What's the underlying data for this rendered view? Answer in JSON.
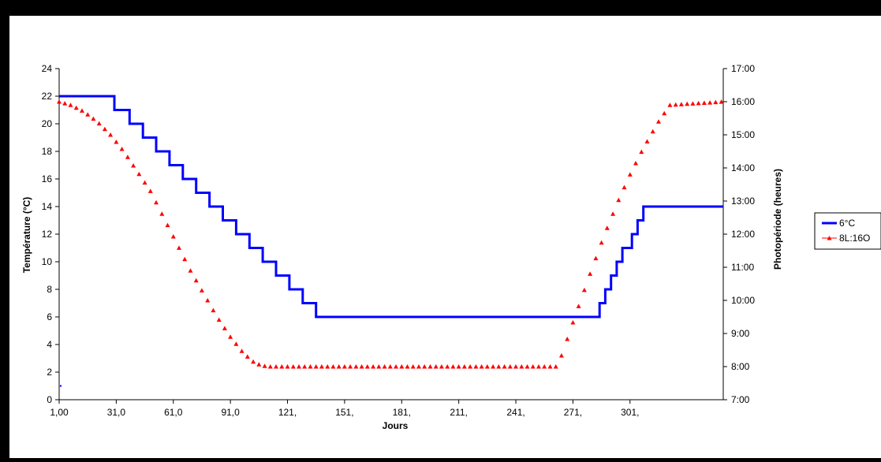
{
  "chart_data": {
    "type": "line",
    "xlabel": "Jours",
    "ylabel_left": "Température (°C)",
    "ylabel_right": "Photopériode (heures)",
    "x_range": [
      1,
      350
    ],
    "ylim_left": [
      0,
      24
    ],
    "ylim_right_hours": [
      7,
      17
    ],
    "x_tick_labels": [
      "1,00",
      "31,0",
      "61,0",
      "91,0",
      "121,",
      "151,",
      "181,",
      "211,",
      "241,",
      "271,",
      "301,"
    ],
    "x_tick_values": [
      1,
      31,
      61,
      91,
      121,
      151,
      181,
      211,
      241,
      271,
      301
    ],
    "y_left_ticks": [
      "0",
      "2",
      "4",
      "6",
      "8",
      "10",
      "12",
      "14",
      "16",
      "18",
      "20",
      "22",
      "24"
    ],
    "y_right_ticks": [
      "7:00",
      "8:00",
      "9:00",
      "10:00",
      "11:00",
      "12:00",
      "13:00",
      "14:00",
      "15:00",
      "16:00",
      "17:00"
    ],
    "grid": false,
    "legend_position": "right",
    "series": [
      {
        "name": "6°C",
        "axis": "left",
        "style": "step",
        "color": "#0000ff",
        "points": [
          [
            1,
            22
          ],
          [
            30,
            22
          ],
          [
            30,
            21
          ],
          [
            38,
            21
          ],
          [
            38,
            20
          ],
          [
            45,
            20
          ],
          [
            45,
            19
          ],
          [
            52,
            19
          ],
          [
            52,
            18
          ],
          [
            59,
            18
          ],
          [
            59,
            17
          ],
          [
            66,
            17
          ],
          [
            66,
            16
          ],
          [
            73,
            16
          ],
          [
            73,
            15
          ],
          [
            80,
            15
          ],
          [
            80,
            14
          ],
          [
            87,
            14
          ],
          [
            87,
            13
          ],
          [
            94,
            13
          ],
          [
            94,
            12
          ],
          [
            101,
            12
          ],
          [
            101,
            11
          ],
          [
            108,
            11
          ],
          [
            108,
            10
          ],
          [
            115,
            10
          ],
          [
            115,
            9
          ],
          [
            122,
            9
          ],
          [
            122,
            8
          ],
          [
            129,
            8
          ],
          [
            129,
            7
          ],
          [
            136,
            7
          ],
          [
            136,
            6
          ],
          [
            285,
            6
          ],
          [
            285,
            7
          ],
          [
            288,
            7
          ],
          [
            288,
            8
          ],
          [
            291,
            8
          ],
          [
            291,
            9
          ],
          [
            294,
            9
          ],
          [
            294,
            10
          ],
          [
            297,
            10
          ],
          [
            297,
            11
          ],
          [
            302,
            11
          ],
          [
            302,
            12
          ],
          [
            305,
            12
          ],
          [
            305,
            13
          ],
          [
            308,
            13
          ],
          [
            308,
            14
          ],
          [
            350,
            14
          ]
        ]
      },
      {
        "name": "8L:16O",
        "axis": "right",
        "style": "markers",
        "color": "#ff0000",
        "profile": [
          [
            1,
            16.0
          ],
          [
            7,
            15.9
          ],
          [
            14,
            15.7
          ],
          [
            21,
            15.4
          ],
          [
            28,
            15.0
          ],
          [
            35,
            14.5
          ],
          [
            42,
            13.9
          ],
          [
            49,
            13.3
          ],
          [
            56,
            12.5
          ],
          [
            63,
            11.7
          ],
          [
            70,
            10.9
          ],
          [
            77,
            10.2
          ],
          [
            84,
            9.5
          ],
          [
            91,
            8.9
          ],
          [
            98,
            8.4
          ],
          [
            104,
            8.1
          ],
          [
            110,
            8.0
          ],
          [
            263,
            8.0
          ],
          [
            272,
            9.5
          ],
          [
            280,
            10.8
          ],
          [
            287,
            11.9
          ],
          [
            294,
            12.9
          ],
          [
            301,
            13.8
          ],
          [
            308,
            14.6
          ],
          [
            316,
            15.4
          ],
          [
            322,
            15.9
          ],
          [
            350,
            16.0
          ]
        ]
      }
    ]
  }
}
